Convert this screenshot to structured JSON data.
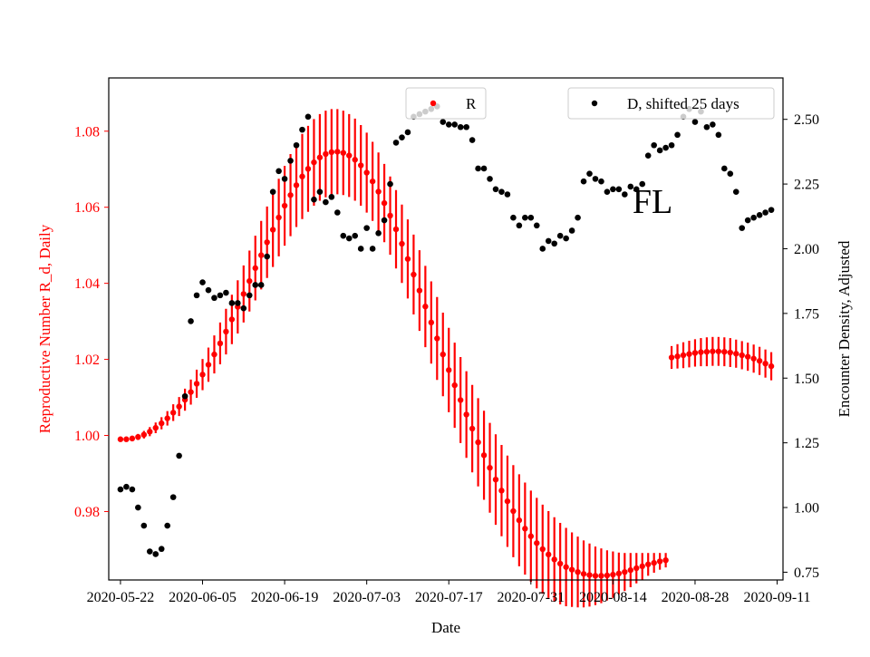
{
  "chart_data": {
    "type": "scatter",
    "title": "",
    "annotation": "FL",
    "xlabel": "Date",
    "ylabel_left": "Reproductive Number R_d, Daily",
    "ylabel_right": "Encounter Density, Adjusted",
    "x_range": [
      "2020-05-20",
      "2020-09-12"
    ],
    "ylim_left": [
      0.962,
      1.094
    ],
    "ylim_right": [
      0.72,
      2.66
    ],
    "x_ticks": [
      "2020-05-22",
      "2020-06-05",
      "2020-06-19",
      "2020-07-03",
      "2020-07-17",
      "2020-07-31",
      "2020-08-14",
      "2020-08-28",
      "2020-09-11"
    ],
    "y_ticks_left": [
      "0.98",
      "1.00",
      "1.02",
      "1.04",
      "1.06",
      "1.08"
    ],
    "y_ticks_right": [
      "0.75",
      "1.00",
      "1.25",
      "1.50",
      "1.75",
      "2.00",
      "2.25",
      "2.50"
    ],
    "legend": {
      "left_label": "R",
      "right_label": "D, shifted 25 days",
      "left_position": "top-center",
      "right_position": "top-right"
    },
    "colors": {
      "R": "#ff0000",
      "D": "#000000",
      "left_axis": "#ff0000",
      "right_axis": "#000000"
    },
    "series": [
      {
        "name": "R",
        "axis": "left",
        "x": [
          "2020-05-22",
          "2020-05-23",
          "2020-05-24",
          "2020-05-25",
          "2020-05-26",
          "2020-05-27",
          "2020-05-28",
          "2020-05-29",
          "2020-05-30",
          "2020-05-31",
          "2020-06-01",
          "2020-06-02",
          "2020-06-03",
          "2020-06-04",
          "2020-06-05",
          "2020-06-06",
          "2020-06-07",
          "2020-06-08",
          "2020-06-09",
          "2020-06-10",
          "2020-06-11",
          "2020-06-12",
          "2020-06-13",
          "2020-06-14",
          "2020-06-15",
          "2020-06-16",
          "2020-06-17",
          "2020-06-18",
          "2020-06-19",
          "2020-06-20",
          "2020-06-21",
          "2020-06-22",
          "2020-06-23",
          "2020-06-24",
          "2020-06-25",
          "2020-06-26",
          "2020-06-27",
          "2020-06-28",
          "2020-06-29",
          "2020-06-30",
          "2020-07-01",
          "2020-07-02",
          "2020-07-03",
          "2020-07-04",
          "2020-07-05",
          "2020-07-06",
          "2020-07-07",
          "2020-07-08",
          "2020-07-09",
          "2020-07-10",
          "2020-07-11",
          "2020-07-12",
          "2020-07-13",
          "2020-07-14",
          "2020-07-15",
          "2020-07-16",
          "2020-07-17",
          "2020-07-18",
          "2020-07-19",
          "2020-07-20",
          "2020-07-21",
          "2020-07-22",
          "2020-07-23",
          "2020-07-24",
          "2020-07-25",
          "2020-07-26",
          "2020-07-27",
          "2020-07-28",
          "2020-07-29",
          "2020-07-30",
          "2020-07-31",
          "2020-08-01",
          "2020-08-02",
          "2020-08-03",
          "2020-08-04",
          "2020-08-05",
          "2020-08-06",
          "2020-08-07",
          "2020-08-08",
          "2020-08-09",
          "2020-08-10",
          "2020-08-11",
          "2020-08-12",
          "2020-08-13",
          "2020-08-14",
          "2020-08-15",
          "2020-08-16",
          "2020-08-17",
          "2020-08-18",
          "2020-08-19",
          "2020-08-20",
          "2020-08-21",
          "2020-08-22",
          "2020-08-23"
        ],
        "y": [
          0.999,
          0.999,
          0.9992,
          0.9996,
          1.0002,
          1.001,
          1.002,
          1.0032,
          1.0045,
          1.006,
          1.0076,
          1.0094,
          1.0114,
          1.0136,
          1.016,
          1.0186,
          1.0213,
          1.0242,
          1.0273,
          1.0305,
          1.0338,
          1.0372,
          1.0406,
          1.044,
          1.0474,
          1.0508,
          1.0541,
          1.0573,
          1.0604,
          1.0632,
          1.0658,
          1.0681,
          1.0701,
          1.0718,
          1.0731,
          1.074,
          1.0745,
          1.0746,
          1.0743,
          1.0736,
          1.0725,
          1.071,
          1.0691,
          1.0668,
          1.0641,
          1.0611,
          1.0578,
          1.0542,
          1.0504,
          1.0464,
          1.0423,
          1.0381,
          1.0339,
          1.0297,
          1.0255,
          1.0213,
          1.0172,
          1.0132,
          1.0093,
          1.0055,
          1.0018,
          0.9982,
          0.9948,
          0.9915,
          0.9884,
          0.9855,
          0.9827,
          0.9801,
          0.9777,
          0.9755,
          0.9735,
          0.9717,
          0.9701,
          0.9687,
          0.9674,
          0.9663,
          0.9654,
          0.9647,
          0.9641,
          0.9636,
          0.9633,
          0.9631,
          0.9631,
          0.9632,
          0.9634,
          0.9637,
          0.9641,
          0.9646,
          0.9651,
          0.9656,
          0.9661,
          0.9665,
          0.9669,
          0.9672
        ],
        "error": [
          0.0005,
          0.0006,
          0.0007,
          0.0008,
          0.001,
          0.0012,
          0.0014,
          0.0016,
          0.0019,
          0.0022,
          0.0025,
          0.0029,
          0.0033,
          0.0037,
          0.0041,
          0.0045,
          0.005,
          0.0055,
          0.006,
          0.0065,
          0.007,
          0.0075,
          0.008,
          0.0085,
          0.009,
          0.0094,
          0.0098,
          0.0102,
          0.0105,
          0.0108,
          0.011,
          0.0112,
          0.0113,
          0.0114,
          0.0114,
          0.0114,
          0.0113,
          0.0112,
          0.0111,
          0.0109,
          0.0108,
          0.0106,
          0.0105,
          0.0104,
          0.0103,
          0.0103,
          0.0103,
          0.0103,
          0.0103,
          0.0104,
          0.0105,
          0.0106,
          0.0107,
          0.0108,
          0.0109,
          0.011,
          0.0111,
          0.0112,
          0.0113,
          0.0114,
          0.0115,
          0.0116,
          0.0117,
          0.0118,
          0.0119,
          0.012,
          0.012,
          0.0121,
          0.0121,
          0.0121,
          0.012,
          0.0119,
          0.0117,
          0.0114,
          0.0111,
          0.0107,
          0.0103,
          0.0098,
          0.0093,
          0.0088,
          0.0083,
          0.0077,
          0.0072,
          0.0066,
          0.0061,
          0.0055,
          0.005,
          0.0045,
          0.004,
          0.0035,
          0.003,
          0.0026,
          0.0022,
          0.0019
        ]
      },
      {
        "name": "R",
        "axis": "left",
        "x": [
          "2020-08-24",
          "2020-08-25",
          "2020-08-26",
          "2020-08-27",
          "2020-08-28",
          "2020-08-29",
          "2020-08-30",
          "2020-08-31",
          "2020-09-01",
          "2020-09-02",
          "2020-09-03",
          "2020-09-04",
          "2020-09-05",
          "2020-09-06",
          "2020-09-07",
          "2020-09-08",
          "2020-09-09",
          "2020-09-10"
        ],
        "y": [
          1.0205,
          1.0208,
          1.0211,
          1.0214,
          1.0217,
          1.0219,
          1.022,
          1.0221,
          1.0221,
          1.022,
          1.0218,
          1.0215,
          1.0211,
          1.0207,
          1.0202,
          1.0196,
          1.0189,
          1.0182
        ],
        "error": [
          0.003,
          0.0032,
          0.0034,
          0.0035,
          0.0036,
          0.0037,
          0.0038,
          0.0038,
          0.0038,
          0.0038,
          0.0038,
          0.0037,
          0.0037,
          0.0037,
          0.0037,
          0.0037,
          0.0037,
          0.0037
        ]
      },
      {
        "name": "D, shifted 25 days",
        "axis": "right",
        "x": [
          "2020-05-22",
          "2020-05-23",
          "2020-05-24",
          "2020-05-25",
          "2020-05-26",
          "2020-05-27",
          "2020-05-28",
          "2020-05-29",
          "2020-05-30",
          "2020-05-31",
          "2020-06-01",
          "2020-06-02",
          "2020-06-03",
          "2020-06-04",
          "2020-06-05",
          "2020-06-06",
          "2020-06-07",
          "2020-06-08",
          "2020-06-09",
          "2020-06-10",
          "2020-06-11",
          "2020-06-12",
          "2020-06-13",
          "2020-06-14",
          "2020-06-15",
          "2020-06-16",
          "2020-06-17",
          "2020-06-18",
          "2020-06-19",
          "2020-06-20",
          "2020-06-21",
          "2020-06-22",
          "2020-06-23",
          "2020-06-24",
          "2020-06-25",
          "2020-06-26",
          "2020-06-27",
          "2020-06-28",
          "2020-06-29",
          "2020-06-30",
          "2020-07-01",
          "2020-07-02",
          "2020-07-03",
          "2020-07-04",
          "2020-07-05",
          "2020-07-06",
          "2020-07-07",
          "2020-07-08",
          "2020-07-09",
          "2020-07-10",
          "2020-07-11",
          "2020-07-12",
          "2020-07-13",
          "2020-07-14",
          "2020-07-15",
          "2020-07-16",
          "2020-07-17",
          "2020-07-18",
          "2020-07-19",
          "2020-07-20",
          "2020-07-21",
          "2020-07-22",
          "2020-07-23",
          "2020-07-24",
          "2020-07-25",
          "2020-07-26",
          "2020-07-27",
          "2020-07-28",
          "2020-07-29",
          "2020-07-30",
          "2020-07-31",
          "2020-08-01",
          "2020-08-02",
          "2020-08-03",
          "2020-08-04",
          "2020-08-05",
          "2020-08-06",
          "2020-08-07",
          "2020-08-08",
          "2020-08-09",
          "2020-08-10",
          "2020-08-11",
          "2020-08-12",
          "2020-08-13",
          "2020-08-14",
          "2020-08-15",
          "2020-08-16",
          "2020-08-17",
          "2020-08-18",
          "2020-08-19",
          "2020-08-20",
          "2020-08-21",
          "2020-08-22",
          "2020-08-23",
          "2020-08-24",
          "2020-08-25",
          "2020-08-26",
          "2020-08-27",
          "2020-08-28",
          "2020-08-29",
          "2020-08-30",
          "2020-08-31",
          "2020-09-01",
          "2020-09-02",
          "2020-09-03",
          "2020-09-04",
          "2020-09-05",
          "2020-09-06",
          "2020-09-07",
          "2020-09-08",
          "2020-09-09",
          "2020-09-10"
        ],
        "y": [
          1.07,
          1.08,
          1.07,
          1.0,
          0.93,
          0.83,
          0.82,
          0.84,
          0.93,
          1.04,
          1.2,
          1.43,
          1.72,
          1.82,
          1.87,
          1.84,
          1.81,
          1.82,
          1.83,
          1.79,
          1.79,
          1.77,
          1.82,
          1.86,
          1.86,
          1.97,
          2.22,
          2.3,
          2.27,
          2.34,
          2.4,
          2.46,
          2.51,
          2.19,
          2.22,
          2.18,
          2.2,
          2.14,
          2.05,
          2.04,
          2.05,
          2.0,
          2.08,
          2.0,
          2.06,
          2.11,
          2.25,
          2.41,
          2.43,
          2.45,
          2.51,
          2.52,
          2.53,
          2.54,
          2.55,
          2.49,
          2.48,
          2.48,
          2.47,
          2.47,
          2.42,
          2.31,
          2.31,
          2.27,
          2.23,
          2.22,
          2.21,
          2.12,
          2.09,
          2.12,
          2.12,
          2.09,
          2.0,
          2.03,
          2.02,
          2.05,
          2.04,
          2.07,
          2.12,
          2.26,
          2.29,
          2.27,
          2.26,
          2.22,
          2.23,
          2.23,
          2.21,
          2.24,
          2.23,
          2.25,
          2.36,
          2.4,
          2.38,
          2.39,
          2.4,
          2.44,
          2.51,
          2.54,
          2.49,
          2.53,
          2.47,
          2.48,
          2.44,
          2.31,
          2.29,
          2.22,
          2.08,
          2.11,
          2.12,
          2.13,
          2.14,
          2.15
        ]
      }
    ]
  }
}
